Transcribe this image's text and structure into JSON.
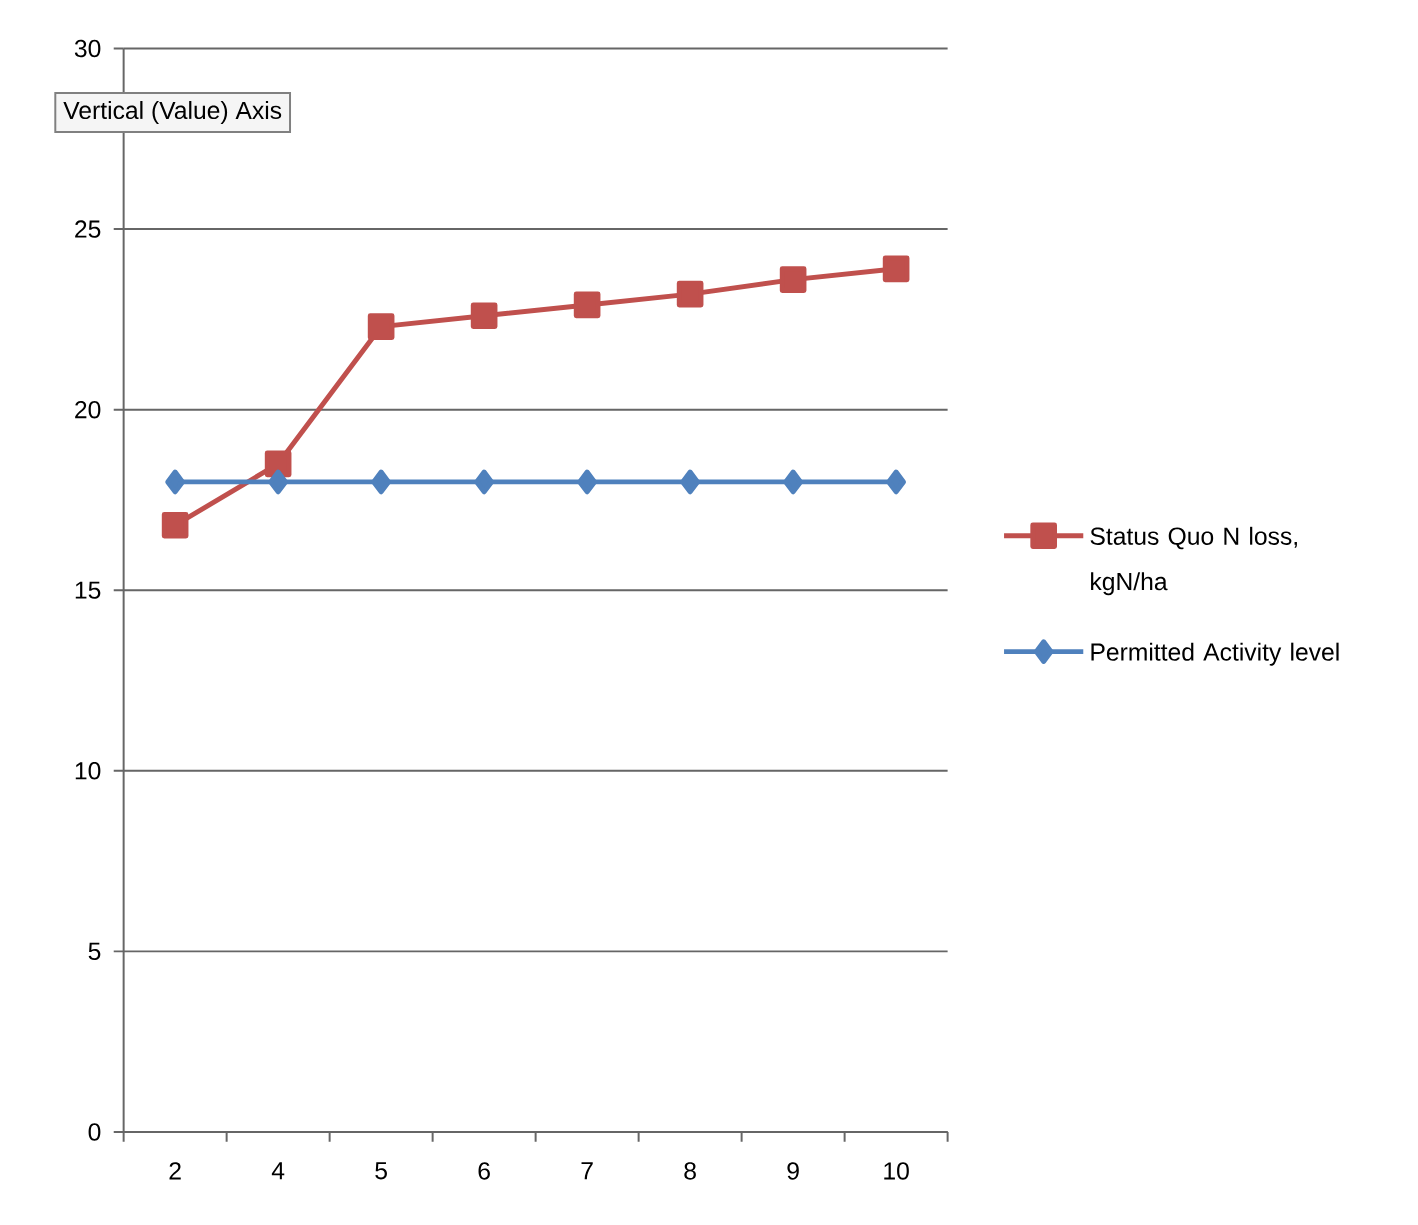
{
  "chart_data": {
    "type": "line",
    "categories": [
      "2",
      "4",
      "5",
      "6",
      "7",
      "8",
      "9",
      "10"
    ],
    "series": [
      {
        "name": "Status Quo N loss, kgN/ha",
        "color": "#c0504d",
        "marker": "square",
        "values": [
          16.8,
          18.5,
          22.3,
          22.6,
          22.9,
          23.2,
          23.6,
          23.9
        ]
      },
      {
        "name": "Permitted Activity level",
        "color": "#4f81bd",
        "marker": "diamond",
        "values": [
          18,
          18,
          18,
          18,
          18,
          18,
          18,
          18
        ]
      }
    ],
    "ylim": [
      0,
      30
    ],
    "yticks": [
      0,
      5,
      10,
      15,
      20,
      25,
      30
    ],
    "grid": "y",
    "legend": "right",
    "annotations": [
      "Vertical (Value) Axis"
    ]
  }
}
